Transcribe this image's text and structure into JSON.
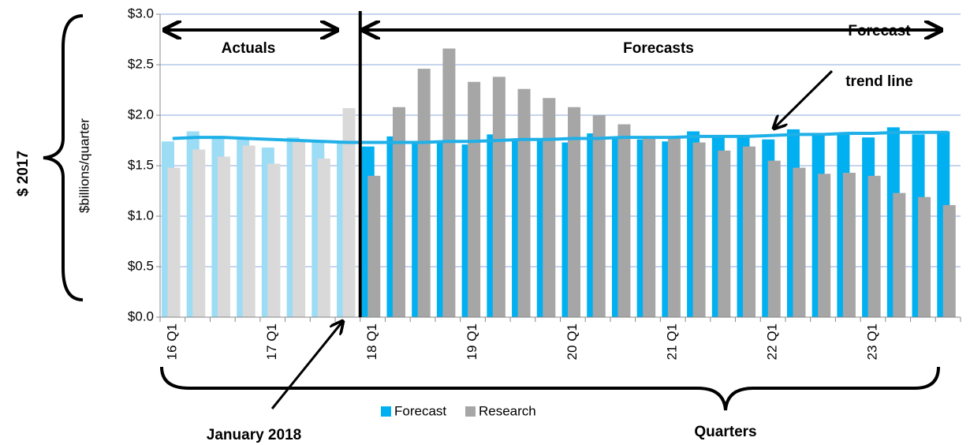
{
  "chart_data": {
    "type": "bar",
    "y_label": "$billions/quarter",
    "x_label": "Quarters",
    "categories": [
      "16 Q1",
      null,
      null,
      null,
      "17 Q1",
      null,
      null,
      null,
      "18 Q1",
      null,
      null,
      null,
      "19 Q1",
      null,
      null,
      null,
      "20 Q1",
      null,
      null,
      null,
      "21 Q1",
      null,
      null,
      null,
      "22 Q1",
      null,
      null,
      null,
      "23 Q1",
      null,
      null,
      null
    ],
    "series": [
      {
        "name": "Forecast",
        "color": "#00b0f0",
        "colors": [
          "#9ddcf5",
          "#9ddcf5",
          "#9ddcf5",
          "#9ddcf5",
          "#9ddcf5",
          "#9ddcf5",
          "#9ddcf5",
          "#9ddcf5",
          "#00b0f0",
          "#00b0f0",
          "#00b0f0",
          "#00b0f0",
          "#00b0f0",
          "#00b0f0",
          "#00b0f0",
          "#00b0f0",
          "#00b0f0",
          "#00b0f0",
          "#00b0f0",
          "#00b0f0",
          "#00b0f0",
          "#00b0f0",
          "#00b0f0",
          "#00b0f0",
          "#00b0f0",
          "#00b0f0",
          "#00b0f0",
          "#00b0f0",
          "#00b0f0",
          "#00b0f0",
          "#00b0f0",
          "#00b0f0"
        ],
        "values": [
          1.74,
          1.84,
          1.77,
          1.77,
          1.68,
          1.78,
          1.74,
          1.73,
          1.69,
          1.79,
          1.73,
          1.73,
          1.71,
          1.81,
          1.77,
          1.76,
          1.73,
          1.82,
          1.78,
          1.76,
          1.74,
          1.84,
          1.79,
          1.79,
          1.76,
          1.86,
          1.81,
          1.82,
          1.78,
          1.88,
          1.81,
          1.84
        ]
      },
      {
        "name": "Research",
        "color": "#a6a6a6",
        "colors": [
          "#d9d9d9",
          "#d9d9d9",
          "#d9d9d9",
          "#d9d9d9",
          "#d9d9d9",
          "#d9d9d9",
          "#d9d9d9",
          "#d9d9d9",
          "#a6a6a6",
          "#a6a6a6",
          "#a6a6a6",
          "#a6a6a6",
          "#a6a6a6",
          "#a6a6a6",
          "#a6a6a6",
          "#a6a6a6",
          "#a6a6a6",
          "#a6a6a6",
          "#a6a6a6",
          "#a6a6a6",
          "#a6a6a6",
          "#a6a6a6",
          "#a6a6a6",
          "#a6a6a6",
          "#a6a6a6",
          "#a6a6a6",
          "#a6a6a6",
          "#a6a6a6",
          "#a6a6a6",
          "#a6a6a6",
          "#a6a6a6",
          "#a6a6a6"
        ],
        "values": [
          1.48,
          1.66,
          1.59,
          1.7,
          1.52,
          1.74,
          1.57,
          2.07,
          1.4,
          2.08,
          2.46,
          2.66,
          2.33,
          2.38,
          2.26,
          2.17,
          2.08,
          2.0,
          1.91,
          1.77,
          1.77,
          1.73,
          1.65,
          1.69,
          1.55,
          1.48,
          1.42,
          1.43,
          1.4,
          1.23,
          1.19,
          1.11
        ]
      }
    ],
    "trend": {
      "color": "#1fb0e8",
      "values": [
        1.77,
        1.78,
        1.78,
        1.77,
        1.76,
        1.75,
        1.74,
        1.73,
        1.73,
        1.73,
        1.73,
        1.74,
        1.74,
        1.75,
        1.76,
        1.76,
        1.77,
        1.77,
        1.78,
        1.78,
        1.78,
        1.79,
        1.79,
        1.79,
        1.8,
        1.81,
        1.81,
        1.82,
        1.82,
        1.83,
        1.83,
        1.83
      ]
    },
    "ylim": [
      0,
      3
    ],
    "yticks": [
      {
        "value": 0,
        "label": "$0.0"
      },
      {
        "value": 0.5,
        "label": "$0.5"
      },
      {
        "value": 1,
        "label": "$1.0"
      },
      {
        "value": 1.5,
        "label": "$1.5"
      },
      {
        "value": 2,
        "label": "$2.0"
      },
      {
        "value": 2.5,
        "label": "$2.5"
      },
      {
        "value": 3,
        "label": "$3.0"
      }
    ],
    "grid": true,
    "annotations": {
      "actuals": "Actuals",
      "forecasts": "Forecasts",
      "trend_1": "Forecast",
      "trend_2": "trend line",
      "january": "January 2018",
      "dollar_year": "$ 2017"
    }
  }
}
